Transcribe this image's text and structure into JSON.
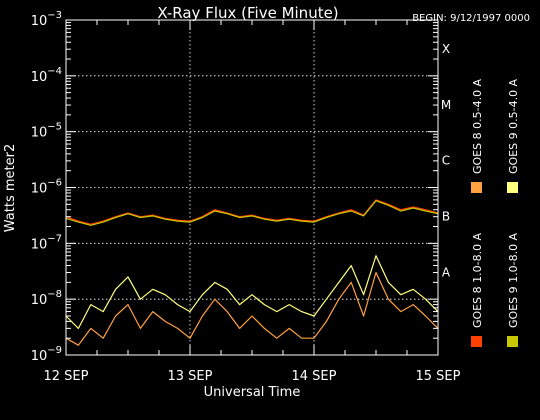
{
  "chart_data": {
    "type": "line",
    "title": "X-Ray Flux (Five Minute)",
    "begin_label": "BEGIN: 9/12/1997 0000",
    "xlabel": "Universal Time",
    "ylabel": "Watts meter2",
    "y_scale": "log",
    "ylim": [
      1e-09,
      0.001
    ],
    "y_ticks": [
      {
        "value": 0.001,
        "base": "10",
        "exp": "−3"
      },
      {
        "value": 0.0001,
        "base": "10",
        "exp": "−4"
      },
      {
        "value": 1e-05,
        "base": "10",
        "exp": "−5"
      },
      {
        "value": 1e-06,
        "base": "10",
        "exp": "−6"
      },
      {
        "value": 1e-07,
        "base": "10",
        "exp": "−7"
      },
      {
        "value": 1e-08,
        "base": "10",
        "exp": "−8"
      },
      {
        "value": 1e-09,
        "base": "10",
        "exp": "−9"
      }
    ],
    "x_range_days": [
      12,
      15
    ],
    "x_ticks": [
      {
        "day": 12,
        "label": "12 SEP"
      },
      {
        "day": 13,
        "label": "13 SEP"
      },
      {
        "day": 14,
        "label": "14 SEP"
      },
      {
        "day": 15,
        "label": "15 SEP"
      }
    ],
    "flare_classes": [
      {
        "label": "X",
        "value": 0.0001
      },
      {
        "label": "M",
        "value": 1e-05
      },
      {
        "label": "C",
        "value": 1e-06
      },
      {
        "label": "B",
        "value": 1e-07
      },
      {
        "label": "A",
        "value": 1e-08
      }
    ],
    "grid": true,
    "legend_placement": "right",
    "series": [
      {
        "name": "GOES 8 1.0-8.0 A",
        "color": "#ff4000",
        "x": [
          12.0,
          12.1,
          12.2,
          12.3,
          12.4,
          12.5,
          12.6,
          12.7,
          12.8,
          12.9,
          13.0,
          13.1,
          13.2,
          13.3,
          13.4,
          13.5,
          13.6,
          13.7,
          13.8,
          13.9,
          14.0,
          14.1,
          14.2,
          14.3,
          14.4,
          14.5,
          14.6,
          14.7,
          14.8,
          14.9,
          15.0
        ],
        "y": [
          3e-07,
          2.5e-07,
          2.2e-07,
          2.5e-07,
          3e-07,
          3.5e-07,
          3e-07,
          3.2e-07,
          2.8e-07,
          2.6e-07,
          2.5e-07,
          3e-07,
          4e-07,
          3.5e-07,
          3e-07,
          3.2e-07,
          2.8e-07,
          2.6e-07,
          2.8e-07,
          2.6e-07,
          2.5e-07,
          3e-07,
          3.5e-07,
          4e-07,
          3.2e-07,
          6e-07,
          5e-07,
          4e-07,
          4.5e-07,
          4e-07,
          3.5e-07
        ]
      },
      {
        "name": "GOES 8 0.5-4.0 A",
        "color": "#ffa040",
        "x": [
          12.0,
          12.1,
          12.2,
          12.3,
          12.4,
          12.5,
          12.6,
          12.7,
          12.8,
          12.9,
          13.0,
          13.1,
          13.2,
          13.3,
          13.4,
          13.5,
          13.6,
          13.7,
          13.8,
          13.9,
          14.0,
          14.1,
          14.2,
          14.3,
          14.4,
          14.5,
          14.6,
          14.7,
          14.8,
          14.9,
          15.0
        ],
        "y": [
          2e-09,
          1.5e-09,
          3e-09,
          2e-09,
          5e-09,
          8e-09,
          3e-09,
          6e-09,
          4e-09,
          3e-09,
          2e-09,
          5e-09,
          1e-08,
          6e-09,
          3e-09,
          5e-09,
          3e-09,
          2e-09,
          3e-09,
          2e-09,
          2e-09,
          4e-09,
          1e-08,
          2e-08,
          5e-09,
          3e-08,
          1e-08,
          6e-09,
          8e-09,
          5e-09,
          3e-09
        ]
      },
      {
        "name": "GOES 9 1.0-8.0 A",
        "color": "#c8c800",
        "x": [
          12.0,
          12.1,
          12.2,
          12.3,
          12.4,
          12.5,
          12.6,
          12.7,
          12.8,
          12.9,
          13.0,
          13.1,
          13.2,
          13.3,
          13.4,
          13.5,
          13.6,
          13.7,
          13.8,
          13.9,
          14.0,
          14.1,
          14.2,
          14.3,
          14.4,
          14.5,
          14.6,
          14.7,
          14.8,
          14.9,
          15.0
        ],
        "y": [
          2.8e-07,
          2.4e-07,
          2.1e-07,
          2.4e-07,
          2.9e-07,
          3.4e-07,
          2.9e-07,
          3.1e-07,
          2.7e-07,
          2.5e-07,
          2.4e-07,
          2.9e-07,
          3.8e-07,
          3.4e-07,
          2.9e-07,
          3.1e-07,
          2.7e-07,
          2.5e-07,
          2.7e-07,
          2.5e-07,
          2.4e-07,
          2.9e-07,
          3.4e-07,
          3.8e-07,
          3.1e-07,
          5.8e-07,
          4.8e-07,
          3.8e-07,
          4.3e-07,
          3.8e-07,
          3.4e-07
        ]
      },
      {
        "name": "GOES 9 0.5-4.0 A",
        "color": "#ffff80",
        "x": [
          12.0,
          12.1,
          12.2,
          12.3,
          12.4,
          12.5,
          12.6,
          12.7,
          12.8,
          12.9,
          13.0,
          13.1,
          13.2,
          13.3,
          13.4,
          13.5,
          13.6,
          13.7,
          13.8,
          13.9,
          14.0,
          14.1,
          14.2,
          14.3,
          14.4,
          14.5,
          14.6,
          14.7,
          14.8,
          14.9,
          15.0
        ],
        "y": [
          5e-09,
          3e-09,
          8e-09,
          6e-09,
          1.5e-08,
          2.5e-08,
          1e-08,
          1.5e-08,
          1.2e-08,
          8e-09,
          6e-09,
          1.2e-08,
          2e-08,
          1.5e-08,
          8e-09,
          1.2e-08,
          8e-09,
          6e-09,
          8e-09,
          6e-09,
          5e-09,
          1e-08,
          2e-08,
          4e-08,
          1.2e-08,
          6e-08,
          2e-08,
          1.2e-08,
          1.5e-08,
          1e-08,
          6e-09
        ]
      }
    ]
  }
}
